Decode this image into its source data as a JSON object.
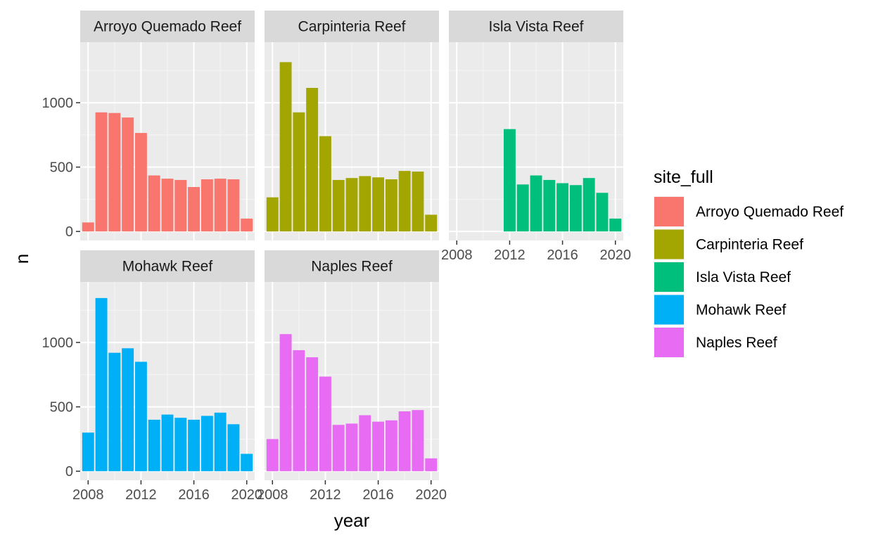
{
  "chart_data": {
    "type": "bar",
    "xlabel": "year",
    "ylabel": "n",
    "x_ticks": [
      2008,
      2012,
      2016,
      2020
    ],
    "y_ticks": [
      0,
      500,
      1000
    ],
    "xlim": [
      2007.4,
      2020.6
    ],
    "ylim": [
      -70,
      1470
    ],
    "grid": true,
    "legend": {
      "title": "site_full",
      "position": "right",
      "entries": [
        {
          "label": "Arroyo Quemado Reef",
          "color": "#F8766D"
        },
        {
          "label": "Carpinteria Reef",
          "color": "#A3A500"
        },
        {
          "label": "Isla Vista Reef",
          "color": "#00BF7D"
        },
        {
          "label": "Mohawk Reef",
          "color": "#00B0F6"
        },
        {
          "label": "Naples Reef",
          "color": "#E76BF3"
        }
      ]
    },
    "panels": [
      {
        "strip": "Arroyo Quemado Reef",
        "color": "#F8766D",
        "x": [
          2008,
          2009,
          2010,
          2011,
          2012,
          2013,
          2014,
          2015,
          2016,
          2017,
          2018,
          2019,
          2020
        ],
        "values": [
          70,
          925,
          920,
          885,
          765,
          435,
          410,
          400,
          345,
          405,
          410,
          405,
          100
        ]
      },
      {
        "strip": "Carpinteria Reef",
        "color": "#A3A500",
        "x": [
          2008,
          2009,
          2010,
          2011,
          2012,
          2013,
          2014,
          2015,
          2016,
          2017,
          2018,
          2019,
          2020
        ],
        "values": [
          265,
          1315,
          925,
          1115,
          740,
          400,
          415,
          430,
          420,
          405,
          470,
          465,
          130
        ]
      },
      {
        "strip": "Isla Vista Reef",
        "color": "#00BF7D",
        "x": [
          2012,
          2013,
          2014,
          2015,
          2016,
          2017,
          2018,
          2019,
          2020
        ],
        "values": [
          795,
          365,
          435,
          400,
          375,
          360,
          415,
          300,
          100
        ]
      },
      {
        "strip": "Mohawk Reef",
        "color": "#00B0F6",
        "x": [
          2008,
          2009,
          2010,
          2011,
          2012,
          2013,
          2014,
          2015,
          2016,
          2017,
          2018,
          2019,
          2020
        ],
        "values": [
          300,
          1345,
          920,
          955,
          850,
          400,
          440,
          415,
          400,
          430,
          455,
          365,
          135
        ]
      },
      {
        "strip": "Naples Reef",
        "color": "#E76BF3",
        "x": [
          2008,
          2009,
          2010,
          2011,
          2012,
          2013,
          2014,
          2015,
          2016,
          2017,
          2018,
          2019,
          2020
        ],
        "values": [
          250,
          1065,
          940,
          885,
          735,
          360,
          370,
          435,
          385,
          395,
          465,
          475,
          100
        ]
      }
    ]
  }
}
